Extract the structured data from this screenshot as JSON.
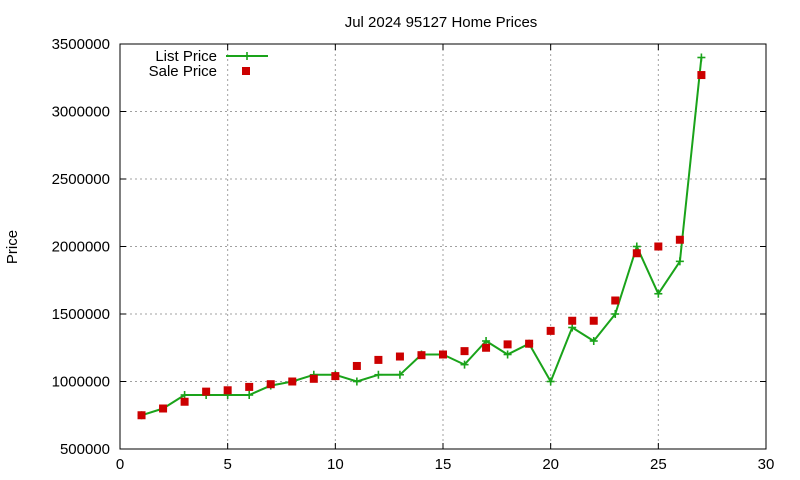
{
  "chart_data": {
    "type": "line",
    "title": "Jul 2024 95127 Home Prices",
    "xlabel": "",
    "ylabel": "Price",
    "xlim": [
      0,
      30
    ],
    "ylim": [
      500000,
      3500000
    ],
    "x_ticks": [
      0,
      5,
      10,
      15,
      20,
      25,
      30
    ],
    "y_ticks": [
      500000,
      1000000,
      1500000,
      2000000,
      2500000,
      3000000,
      3500000
    ],
    "x_tick_labels": [
      "0",
      "5",
      "10",
      "15",
      "20",
      "25",
      "30"
    ],
    "y_tick_labels": [
      "500000",
      "1000000",
      "1500000",
      "2000000",
      "2500000",
      "3000000",
      "3500000"
    ],
    "grid": true,
    "legend_position": "top-left",
    "x": [
      1,
      2,
      3,
      4,
      5,
      6,
      7,
      8,
      9,
      10,
      11,
      12,
      13,
      14,
      15,
      16,
      17,
      18,
      19,
      20,
      21,
      22,
      23,
      24,
      25,
      26,
      27
    ],
    "series": [
      {
        "name": "List Price",
        "style": "line-with-plus-markers",
        "color": "#1aa31a",
        "values": [
          750000,
          800000,
          900000,
          900000,
          900000,
          900000,
          970000,
          1000000,
          1050000,
          1050000,
          1000000,
          1050000,
          1050000,
          1200000,
          1200000,
          1125000,
          1300000,
          1200000,
          1280000,
          1000000,
          1400000,
          1300000,
          1500000,
          2000000,
          1650000,
          1890000,
          3400000
        ]
      },
      {
        "name": "Sale Price",
        "style": "square-markers",
        "color": "#cc0000",
        "values": [
          750000,
          800000,
          850000,
          925000,
          935000,
          960000,
          980000,
          1000000,
          1020000,
          1040000,
          1115000,
          1160000,
          1185000,
          1195000,
          1200000,
          1225000,
          1250000,
          1275000,
          1280000,
          1375000,
          1450000,
          1450000,
          1600000,
          1950000,
          2000000,
          2050000,
          3270000
        ]
      }
    ]
  }
}
